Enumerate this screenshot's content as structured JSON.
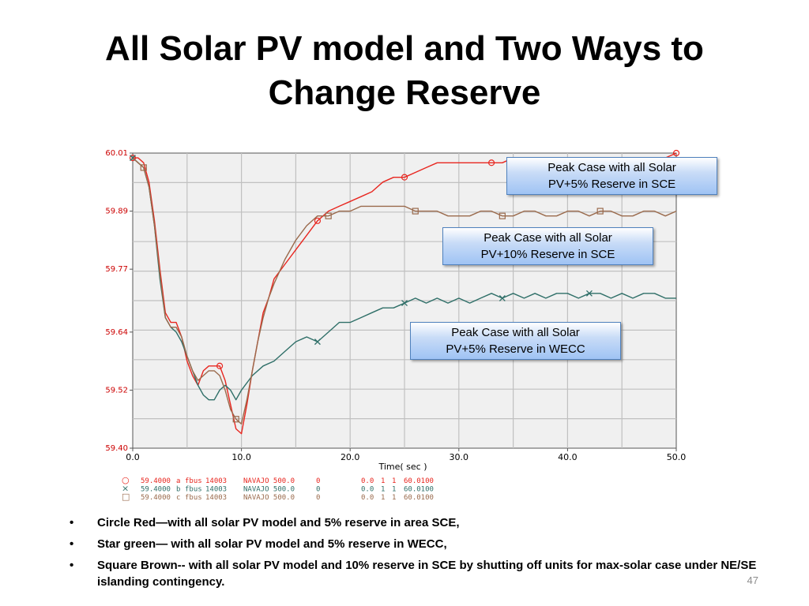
{
  "slide": {
    "title_line1": "All Solar PV model and Two Ways to",
    "title_line2": "Change Reserve",
    "page_number": "47"
  },
  "callouts": [
    {
      "line1": "Peak Case with all Solar",
      "line2": "PV+5% Reserve in SCE"
    },
    {
      "line1": "Peak Case with all Solar",
      "line2": "PV+10% Reserve in SCE"
    },
    {
      "line1": "Peak Case with all Solar",
      "line2": "PV+5% Reserve in WECC"
    }
  ],
  "bullets": [
    {
      "marker": "•",
      "text": "Circle Red—with all solar PV model and 5% reserve in area SCE,"
    },
    {
      "marker": "•",
      "text": "Star green— with all solar PV model and 5% reserve in WECC,"
    },
    {
      "marker": "•",
      "text": "Square Brown-- with all solar PV model and 10% reserve in SCE by shutting off units for max-solar case under NE/SE islanding contingency."
    }
  ],
  "chart_data": {
    "type": "line",
    "xlabel": "Time( sec )",
    "ylabel": "",
    "xlim": [
      0,
      50
    ],
    "ylim": [
      59.4,
      60.01
    ],
    "x_ticks": [
      "0.0",
      "10.0",
      "20.0",
      "30.0",
      "40.0",
      "50.0"
    ],
    "y_ticks": [
      "60.01",
      "59.89",
      "59.77",
      "59.64",
      "59.52",
      "59.40"
    ],
    "grid": true,
    "colors": {
      "red": "#e8261f",
      "green": "#2f6f68",
      "brown": "#9a6a4c",
      "grid": "#c0c0c0",
      "plot_bg": "#f0f0f0",
      "tick": "#cc0000"
    },
    "legend": [
      {
        "marker": "○",
        "val1": "59.4000",
        "ch": "a",
        "name": "fbus",
        "num": "14003",
        "bus": "NAVAJO 500.0",
        "z": "0",
        "f1": "0.0",
        "f2": "1",
        "f3": "1",
        "f4": "60.0100",
        "color": "#e8261f"
      },
      {
        "marker": "×",
        "val1": "59.4000",
        "ch": "b",
        "name": "fbus",
        "num": "14003",
        "bus": "NAVAJO 500.0",
        "z": "0",
        "f1": "0.0",
        "f2": "1",
        "f3": "1",
        "f4": "60.0100",
        "color": "#2f6f68"
      },
      {
        "marker": "□",
        "val1": "59.4000",
        "ch": "c",
        "name": "fbus",
        "num": "14003",
        "bus": "NAVAJO 500.0",
        "z": "0",
        "f1": "0.0",
        "f2": "1",
        "f3": "1",
        "f4": "60.0100",
        "color": "#9a6a4c"
      }
    ],
    "series": [
      {
        "marker": "circle",
        "color": "#e8261f",
        "x": [
          0,
          0.5,
          1,
          1.5,
          2,
          2.5,
          3,
          3.5,
          4,
          4.5,
          5,
          5.5,
          6,
          6.5,
          7,
          7.5,
          8,
          8.5,
          9,
          9.5,
          10,
          10.5,
          11,
          11.5,
          12,
          12.5,
          13,
          14,
          15,
          16,
          17,
          18,
          19,
          20,
          21,
          22,
          23,
          24,
          25,
          26,
          27,
          28,
          29,
          30,
          31,
          32,
          33,
          34,
          35,
          36,
          37,
          38,
          39,
          40,
          41,
          42,
          43,
          44,
          45,
          46,
          47,
          48,
          49,
          50
        ],
        "y": [
          60.0,
          60.0,
          59.99,
          59.95,
          59.87,
          59.77,
          59.68,
          59.66,
          59.66,
          59.63,
          59.58,
          59.55,
          59.53,
          59.56,
          59.57,
          59.57,
          59.57,
          59.54,
          59.49,
          59.44,
          59.43,
          59.49,
          59.56,
          59.62,
          59.68,
          59.71,
          59.75,
          59.78,
          59.81,
          59.84,
          59.87,
          59.89,
          59.9,
          59.91,
          59.92,
          59.93,
          59.95,
          59.96,
          59.96,
          59.97,
          59.98,
          59.99,
          59.99,
          59.99,
          59.99,
          59.99,
          59.99,
          59.99,
          60.0,
          60.0,
          60.0,
          60.0,
          60.0,
          60.0,
          60.0,
          60.0,
          60.0,
          60.0,
          60.0,
          60.0,
          60.0,
          60.0,
          60.0,
          60.01
        ]
      },
      {
        "marker": "x",
        "color": "#2f6f68",
        "x": [
          0,
          0.5,
          1,
          1.5,
          2,
          2.5,
          3,
          3.5,
          4,
          4.5,
          5,
          5.5,
          6,
          6.5,
          7,
          7.5,
          8,
          8.5,
          9,
          9.5,
          10,
          11,
          12,
          13,
          14,
          15,
          16,
          17,
          18,
          19,
          20,
          21,
          22,
          23,
          24,
          25,
          26,
          27,
          28,
          29,
          30,
          31,
          32,
          33,
          34,
          35,
          36,
          37,
          38,
          39,
          40,
          41,
          42,
          43,
          44,
          45,
          46,
          47,
          48,
          49,
          50
        ],
        "y": [
          60.0,
          59.99,
          59.98,
          59.94,
          59.86,
          59.75,
          59.67,
          59.65,
          59.64,
          59.62,
          59.59,
          59.56,
          59.53,
          59.51,
          59.5,
          59.5,
          59.52,
          59.53,
          59.52,
          59.5,
          59.52,
          59.55,
          59.57,
          59.58,
          59.6,
          59.62,
          59.63,
          59.62,
          59.64,
          59.66,
          59.66,
          59.67,
          59.68,
          59.69,
          59.69,
          59.7,
          59.71,
          59.7,
          59.71,
          59.7,
          59.71,
          59.7,
          59.71,
          59.72,
          59.71,
          59.72,
          59.71,
          59.72,
          59.71,
          59.72,
          59.72,
          59.71,
          59.72,
          59.72,
          59.71,
          59.72,
          59.71,
          59.72,
          59.72,
          59.71,
          59.71
        ]
      },
      {
        "marker": "square",
        "color": "#9a6a4c",
        "x": [
          0,
          0.5,
          1,
          1.5,
          2,
          2.5,
          3,
          3.5,
          4,
          4.5,
          5,
          5.5,
          6,
          6.5,
          7,
          7.5,
          8,
          8.5,
          9,
          9.5,
          10,
          10.5,
          11,
          11.5,
          12,
          12.5,
          13,
          14,
          15,
          16,
          17,
          18,
          19,
          20,
          21,
          22,
          23,
          24,
          25,
          26,
          27,
          28,
          29,
          30,
          31,
          32,
          33,
          34,
          35,
          36,
          37,
          38,
          39,
          40,
          41,
          42,
          43,
          44,
          45,
          46,
          47,
          48,
          49,
          50
        ],
        "y": [
          60.0,
          59.99,
          59.98,
          59.94,
          59.86,
          59.76,
          59.67,
          59.65,
          59.65,
          59.63,
          59.59,
          59.56,
          59.54,
          59.55,
          59.56,
          59.56,
          59.55,
          59.52,
          59.48,
          59.46,
          59.45,
          59.5,
          59.56,
          59.62,
          59.67,
          59.71,
          59.74,
          59.79,
          59.83,
          59.86,
          59.88,
          59.88,
          59.89,
          59.89,
          59.9,
          59.9,
          59.9,
          59.9,
          59.9,
          59.89,
          59.89,
          59.89,
          59.88,
          59.88,
          59.88,
          59.89,
          59.89,
          59.88,
          59.88,
          59.89,
          59.89,
          59.88,
          59.88,
          59.89,
          59.89,
          59.88,
          59.89,
          59.89,
          59.88,
          59.88,
          59.89,
          59.89,
          59.88,
          59.89
        ]
      }
    ]
  }
}
